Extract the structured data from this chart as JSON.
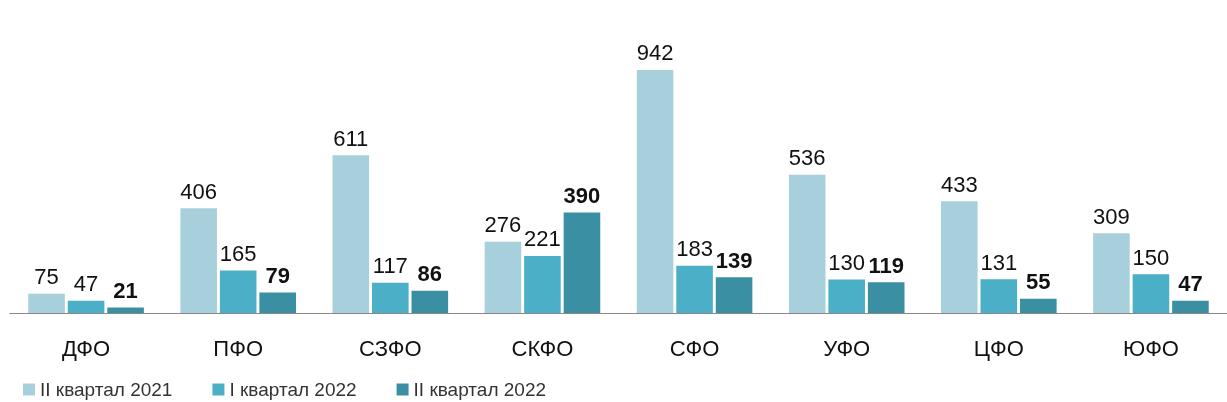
{
  "chart_data": {
    "type": "bar",
    "categories": [
      "ДФО",
      "ПФО",
      "СЗФО",
      "СКФО",
      "СФО",
      "УФО",
      "ЦФО",
      "ЮФО"
    ],
    "series": [
      {
        "name": "II квартал 2021",
        "color": "#a8d0dc",
        "values": [
          75,
          406,
          611,
          276,
          942,
          536,
          433,
          309
        ]
      },
      {
        "name": "I квартал 2022",
        "color": "#4bafc8",
        "values": [
          47,
          165,
          117,
          221,
          183,
          130,
          131,
          150
        ]
      },
      {
        "name": "II квартал 2022",
        "color": "#3a8fa3",
        "values": [
          21,
          79,
          86,
          390,
          139,
          119,
          55,
          47
        ]
      }
    ],
    "data_labels": true,
    "grid": false,
    "legend": "bottom left",
    "tick_labels": "x"
  }
}
